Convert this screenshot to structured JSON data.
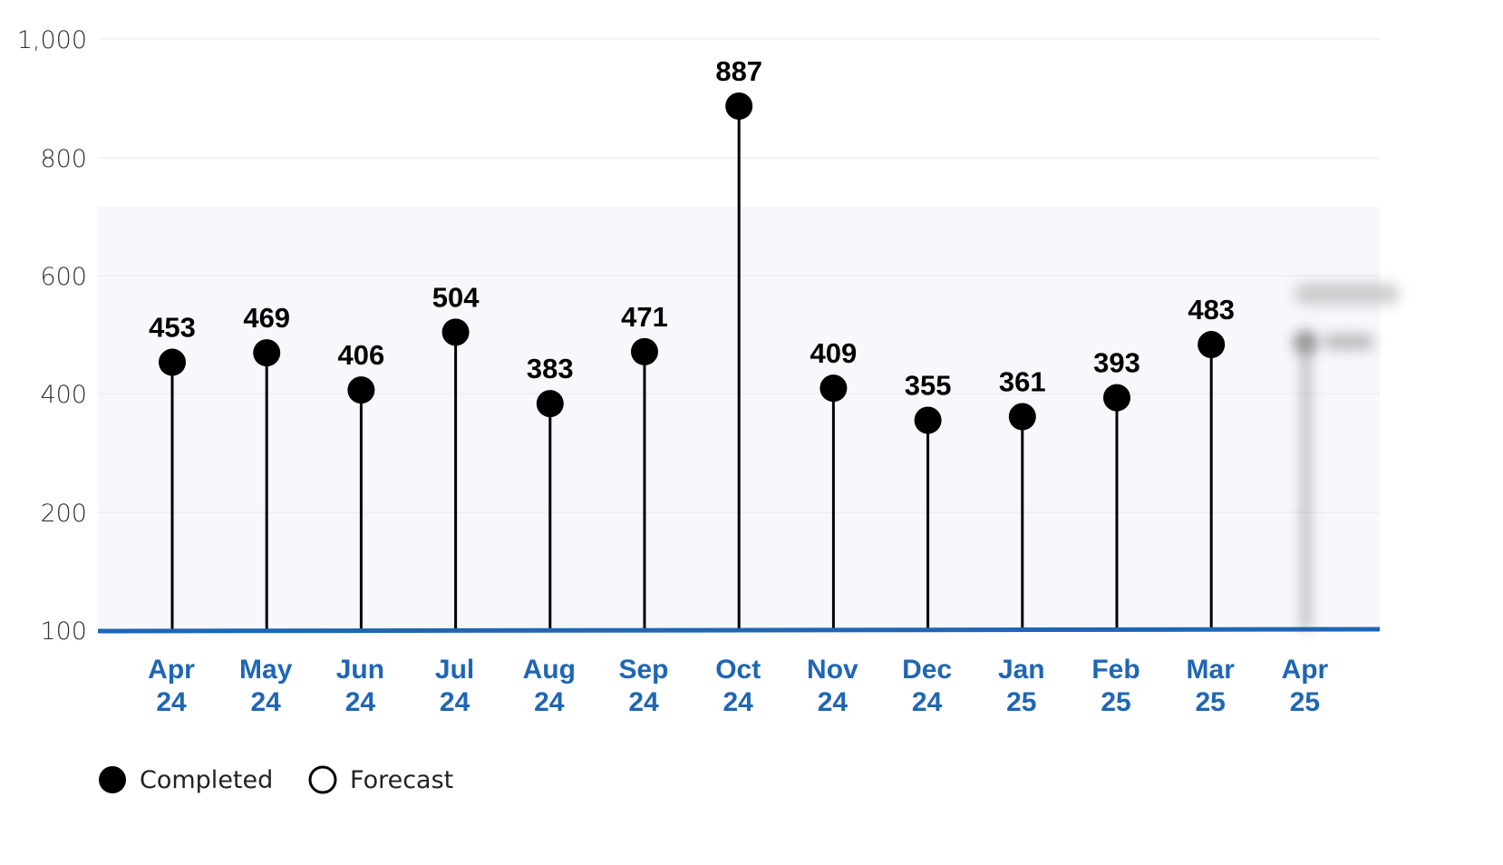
{
  "chart_data": {
    "type": "scatter",
    "title": "",
    "xlabel": "",
    "ylabel": "",
    "ylim": [
      100,
      1000
    ],
    "y_ticks": [
      "100",
      "200",
      "400",
      "600",
      "800",
      "1,000"
    ],
    "y_tick_values": [
      100,
      200,
      400,
      600,
      800,
      1000
    ],
    "grid": true,
    "categories": [
      {
        "line1": "Apr",
        "line2": "24"
      },
      {
        "line1": "May",
        "line2": "24"
      },
      {
        "line1": "Jun",
        "line2": "24"
      },
      {
        "line1": "Jul",
        "line2": "24"
      },
      {
        "line1": "Aug",
        "line2": "24"
      },
      {
        "line1": "Sep",
        "line2": "24"
      },
      {
        "line1": "Oct",
        "line2": "24"
      },
      {
        "line1": "Nov",
        "line2": "24"
      },
      {
        "line1": "Dec",
        "line2": "24"
      },
      {
        "line1": "Jan",
        "line2": "25"
      },
      {
        "line1": "Feb",
        "line2": "25"
      },
      {
        "line1": "Mar",
        "line2": "25"
      },
      {
        "line1": "Apr",
        "line2": "25"
      }
    ],
    "series": [
      {
        "name": "Completed",
        "style": "filled",
        "color": "#000000",
        "values": [
          453,
          469,
          406,
          504,
          383,
          471,
          887,
          409,
          355,
          361,
          393,
          483,
          null
        ],
        "labels": [
          "453",
          "469",
          "406",
          "504",
          "383",
          "471",
          "887",
          "409",
          "355",
          "361",
          "393",
          "483",
          ""
        ]
      }
    ],
    "legend": {
      "placement": "bottom-left",
      "items": [
        {
          "label": "Completed",
          "marker": "filled"
        },
        {
          "label": "Forecast",
          "marker": "hollow"
        }
      ]
    },
    "colors": {
      "axis": "#1f66b4",
      "category_text": "#1f66b4",
      "grid": "#e6e9ee",
      "plot_background": "#f6f8fb",
      "stem": "#000000"
    }
  }
}
